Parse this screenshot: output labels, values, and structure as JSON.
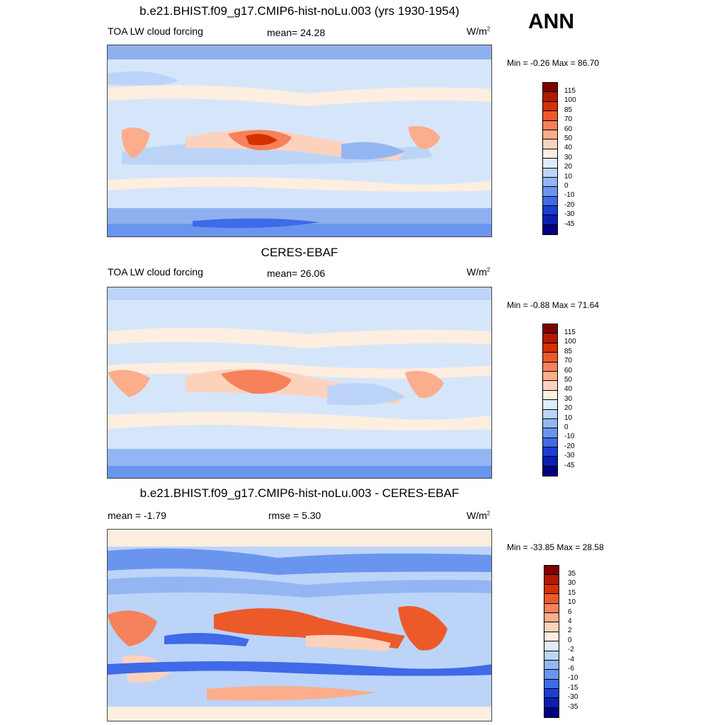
{
  "season": "ANN",
  "panels": [
    {
      "title": "b.e21.BHIST.f09_g17.CMIP6-hist-noLu.003 (yrs 1930-1954)",
      "left": "TOA LW cloud forcing",
      "center": "mean=  24.28",
      "units": "W/m",
      "units_sup": "2",
      "minmax": "Min =  -0.26 Max =  86.70",
      "colorbar": {
        "labels": [
          "115",
          "100",
          "85",
          "70",
          "60",
          "50",
          "40",
          "30",
          "20",
          "10",
          "0",
          "-10",
          "-20",
          "-30",
          "-45"
        ],
        "colors": [
          "#800000",
          "#b01a00",
          "#d63000",
          "#ec5a2a",
          "#f5825a",
          "#fbad8c",
          "#fdd2bd",
          "#fdeee0",
          "#e0ecfb",
          "#bcd4f8",
          "#93b6f3",
          "#6a95ef",
          "#3f6ae8",
          "#1a3ed6",
          "#0a1fb0",
          "#000080"
        ]
      }
    },
    {
      "title": "CERES-EBAF",
      "left": "TOA LW cloud forcing",
      "center": "mean=  26.06",
      "units": "W/m",
      "units_sup": "2",
      "minmax": "Min =  -0.88 Max =  71.64",
      "colorbar": {
        "labels": [
          "115",
          "100",
          "85",
          "70",
          "60",
          "50",
          "40",
          "30",
          "20",
          "10",
          "0",
          "-10",
          "-20",
          "-30",
          "-45"
        ],
        "colors": [
          "#800000",
          "#b01a00",
          "#d63000",
          "#ec5a2a",
          "#f5825a",
          "#fbad8c",
          "#fdd2bd",
          "#fdeee0",
          "#e0ecfb",
          "#bcd4f8",
          "#93b6f3",
          "#6a95ef",
          "#3f6ae8",
          "#1a3ed6",
          "#0a1fb0",
          "#000080"
        ]
      }
    },
    {
      "title": "b.e21.BHIST.f09_g17.CMIP6-hist-noLu.003 - CERES-EBAF",
      "left": "mean =  -1.79",
      "center": "rmse =   5.30",
      "units": "W/m",
      "units_sup": "2",
      "minmax": "Min = -33.85 Max =  28.58",
      "colorbar": {
        "labels": [
          "35",
          "30",
          "15",
          "10",
          "6",
          "4",
          "2",
          "0",
          "-2",
          "-4",
          "-6",
          "-10",
          "-15",
          "-30",
          "-35"
        ],
        "colors": [
          "#800000",
          "#b01a00",
          "#d63000",
          "#ec5a2a",
          "#f5825a",
          "#fbad8c",
          "#fdd2bd",
          "#fdeee0",
          "#e0ecfb",
          "#bcd4f8",
          "#93b6f3",
          "#6a95ef",
          "#3f6ae8",
          "#1a3ed6",
          "#0a1fb0",
          "#000080"
        ]
      }
    }
  ]
}
